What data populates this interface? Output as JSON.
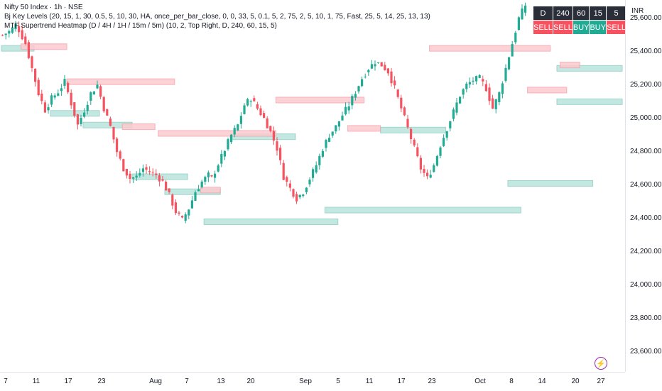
{
  "legend": {
    "symbol_line": "Nifty 50 Index · 1h · NSE",
    "indicator1": "Bj Key Levels (20, 15, 1, 30, 0.5, 5, 10, 30, HA, once_per_bar_close, 0, 0, 33, 5, 0.1, 5, 2, 75, 2, 5, 10, 1, 75, Fast, 25, 5, 14, 25, 13, 13)",
    "indicator2": "MTF Supertrend Heatmap (D / 4H / 1H / 15m / 5m) (10, 2, Top Right, D, 240, 60, 15, 5)"
  },
  "heatmap": {
    "headers": [
      "D",
      "240",
      "60",
      "15",
      "5"
    ],
    "signals": [
      "SELL",
      "SELL",
      "BUY",
      "BUY",
      "SELL"
    ]
  },
  "colors": {
    "up": "#22ab94",
    "down": "#f7525f",
    "support_fill": "#b9e3dc",
    "resistance_fill": "#fccbcf",
    "header_bg": "#2a2e39"
  },
  "price_axis": {
    "currency": "INR",
    "labels": [
      "25,600.00",
      "25,400.00",
      "25,200.00",
      "25,000.00",
      "24,800.00",
      "24,600.00",
      "24,400.00",
      "24,200.00",
      "24,000.00",
      "23,800.00",
      "23,600.00"
    ]
  },
  "time_axis": {
    "labels": [
      "7",
      "11",
      "17",
      "23",
      "Aug",
      "7",
      "13",
      "20",
      "Sep",
      "5",
      "11",
      "17",
      "23",
      "Oct",
      "8",
      "14",
      "20",
      "27"
    ]
  },
  "chart_data": {
    "type": "candlestick",
    "y_range": [
      23480,
      25710
    ],
    "y_ticks": [
      25600,
      25400,
      25200,
      25000,
      24800,
      24600,
      24400,
      24200,
      24000,
      23800,
      23600
    ],
    "x_tick_labels": [
      "7",
      "11",
      "17",
      "23",
      "Aug",
      "7",
      "13",
      "20",
      "Sep",
      "5",
      "11",
      "17",
      "23",
      "Oct",
      "8",
      "14",
      "20",
      "27"
    ],
    "close_path": [
      [
        0,
        25500
      ],
      [
        2,
        25520
      ],
      [
        4,
        25560
      ],
      [
        5,
        25530
      ],
      [
        7,
        25450
      ],
      [
        9,
        25300
      ],
      [
        11,
        25150
      ],
      [
        13,
        25050
      ],
      [
        15,
        25120
      ],
      [
        17,
        25160
      ],
      [
        19,
        25220
      ],
      [
        21,
        25090
      ],
      [
        23,
        24960
      ],
      [
        25,
        25050
      ],
      [
        27,
        25150
      ],
      [
        29,
        25200
      ],
      [
        31,
        25060
      ],
      [
        33,
        24950
      ],
      [
        35,
        24800
      ],
      [
        37,
        24700
      ],
      [
        39,
        24640
      ],
      [
        41,
        24650
      ],
      [
        43,
        24700
      ],
      [
        45,
        24680
      ],
      [
        47,
        24660
      ],
      [
        49,
        24620
      ],
      [
        51,
        24540
      ],
      [
        53,
        24440
      ],
      [
        55,
        24390
      ],
      [
        57,
        24460
      ],
      [
        59,
        24560
      ],
      [
        61,
        24620
      ],
      [
        63,
        24660
      ],
      [
        64,
        24640
      ],
      [
        70,
        24900
      ],
      [
        72,
        24960
      ],
      [
        74,
        25080
      ],
      [
        76,
        25120
      ],
      [
        78,
        25060
      ],
      [
        80,
        25000
      ],
      [
        82,
        24920
      ],
      [
        84,
        24820
      ],
      [
        86,
        24650
      ],
      [
        88,
        24580
      ],
      [
        90,
        24520
      ],
      [
        92,
        24560
      ],
      [
        94,
        24640
      ],
      [
        96,
        24720
      ],
      [
        98,
        24820
      ],
      [
        100,
        24900
      ],
      [
        102,
        24950
      ],
      [
        104,
        25020
      ],
      [
        106,
        25080
      ],
      [
        108,
        25160
      ],
      [
        110,
        25240
      ],
      [
        112,
        25300
      ],
      [
        114,
        25340
      ],
      [
        116,
        25320
      ],
      [
        118,
        25280
      ],
      [
        120,
        25180
      ],
      [
        122,
        25060
      ],
      [
        124,
        24940
      ],
      [
        126,
        24820
      ],
      [
        128,
        24700
      ],
      [
        130,
        24640
      ],
      [
        132,
        24720
      ],
      [
        134,
        24840
      ],
      [
        136,
        24940
      ],
      [
        138,
        25040
      ],
      [
        140,
        25140
      ],
      [
        142,
        25200
      ],
      [
        144,
        25230
      ],
      [
        146,
        25240
      ],
      [
        148,
        25180
      ],
      [
        150,
        25060
      ],
      [
        152,
        25150
      ],
      [
        154,
        25300
      ],
      [
        156,
        25450
      ],
      [
        158,
        25600
      ],
      [
        160,
        25680
      ]
    ],
    "support_levels": [
      {
        "price": 25420,
        "from": 0,
        "to": 10
      },
      {
        "price": 25030,
        "from": 15,
        "to": 30
      },
      {
        "price": 24960,
        "from": 25,
        "to": 40
      },
      {
        "price": 24650,
        "from": 40,
        "to": 57
      },
      {
        "price": 24560,
        "from": 50,
        "to": 67
      },
      {
        "price": 24890,
        "from": 70,
        "to": 90
      },
      {
        "price": 24380,
        "from": 62,
        "to": 103
      },
      {
        "price": 24930,
        "from": 116,
        "to": 136
      },
      {
        "price": 24450,
        "from": 99,
        "to": 159
      },
      {
        "price": 25100,
        "from": 170,
        "to": 190
      },
      {
        "price": 25300,
        "from": 170,
        "to": 190
      },
      {
        "price": 24610,
        "from": 155,
        "to": 181
      }
    ],
    "resistance_levels": [
      {
        "price": 25430,
        "from": 6,
        "to": 20
      },
      {
        "price": 25220,
        "from": 20,
        "to": 53
      },
      {
        "price": 24950,
        "from": 37,
        "to": 47
      },
      {
        "price": 24910,
        "from": 48,
        "to": 84
      },
      {
        "price": 24570,
        "from": 61,
        "to": 67
      },
      {
        "price": 25110,
        "from": 84,
        "to": 111
      },
      {
        "price": 24940,
        "from": 106,
        "to": 116
      },
      {
        "price": 25420,
        "from": 131,
        "to": 168
      },
      {
        "price": 25320,
        "from": 171,
        "to": 177
      },
      {
        "price": 25170,
        "from": 161,
        "to": 173
      }
    ]
  }
}
